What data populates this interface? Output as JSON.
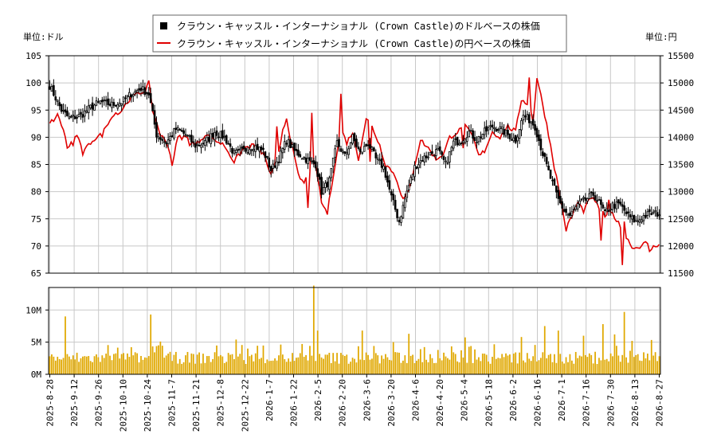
{
  "chart_data": {
    "type": "candlestick_volume",
    "legend": [
      {
        "name": "クラウン・キャッスル・インターナショナル (Crown Castle)のドルベースの株価",
        "color": "#000000"
      },
      {
        "name": "クラウン・キャッスル・インターナショナル (Crown Castle)の円ベースの株価",
        "color": "#e00000"
      }
    ],
    "left_axis_label": "単位:ドル",
    "right_axis_label": "単位:円",
    "y_left": {
      "min": 65,
      "max": 105,
      "ticks": [
        "65",
        "70",
        "75",
        "80",
        "85",
        "90",
        "95",
        "100",
        "105"
      ]
    },
    "y_right": {
      "min": 11500,
      "max": 15500,
      "ticks": [
        "11500",
        "12000",
        "12500",
        "13000",
        "13500",
        "14000",
        "14500",
        "15000",
        "15500"
      ]
    },
    "volume_axis": {
      "min": 0,
      "max": 13500000,
      "ticks": [
        {
          "v": 0,
          "label": "0M"
        },
        {
          "v": 5000000,
          "label": "5M"
        },
        {
          "v": 10000000,
          "label": "10M"
        }
      ]
    },
    "x_tick_labels": [
      "2025-8-28",
      "2025-9-12",
      "2025-9-26",
      "2025-10-10",
      "2025-10-24",
      "2025-11-7",
      "2025-11-21",
      "2025-12-8",
      "2025-12-22",
      "2026-1-7",
      "2026-1-22",
      "2026-2-5",
      "2026-2-20",
      "2026-3-6",
      "2026-3-20",
      "2026-4-6",
      "2026-4-20",
      "2026-5-4",
      "2026-5-18",
      "2026-6-2",
      "2026-6-16",
      "2026-7-1",
      "2026-7-16",
      "2026-7-30",
      "2026-8-13",
      "2026-8-27"
    ],
    "usd_close_anchors": [
      [
        0,
        99.5
      ],
      [
        6,
        95
      ],
      [
        10,
        93.5
      ],
      [
        16,
        94
      ],
      [
        21,
        95.5
      ],
      [
        26,
        96.5
      ],
      [
        32,
        96
      ],
      [
        37,
        96.5
      ],
      [
        42,
        98
      ],
      [
        47,
        99
      ],
      [
        51,
        98
      ],
      [
        55,
        90.5
      ],
      [
        60,
        89
      ],
      [
        65,
        91.5
      ],
      [
        70,
        90.5
      ],
      [
        75,
        88.5
      ],
      [
        80,
        89
      ],
      [
        85,
        91
      ],
      [
        90,
        90
      ],
      [
        95,
        87
      ],
      [
        100,
        87.5
      ],
      [
        105,
        88.5
      ],
      [
        110,
        87.5
      ],
      [
        114,
        84
      ],
      [
        118,
        86
      ],
      [
        122,
        89.5
      ],
      [
        126,
        87.5
      ],
      [
        130,
        86.5
      ],
      [
        134,
        85.5
      ],
      [
        137,
        85
      ],
      [
        140,
        80
      ],
      [
        144,
        82
      ],
      [
        148,
        89
      ],
      [
        152,
        86.5
      ],
      [
        156,
        90
      ],
      [
        160,
        87
      ],
      [
        164,
        89
      ],
      [
        168,
        86
      ],
      [
        172,
        84.5
      ],
      [
        176,
        79
      ],
      [
        180,
        74.5
      ],
      [
        184,
        80
      ],
      [
        188,
        84.5
      ],
      [
        192,
        86
      ],
      [
        196,
        87
      ],
      [
        200,
        87.5
      ],
      [
        204,
        85
      ],
      [
        208,
        89
      ],
      [
        212,
        89.5
      ],
      [
        216,
        91
      ],
      [
        220,
        89.5
      ],
      [
        224,
        91
      ],
      [
        228,
        92
      ],
      [
        232,
        91.5
      ],
      [
        236,
        90.5
      ],
      [
        240,
        89.5
      ],
      [
        244,
        94
      ],
      [
        248,
        93
      ],
      [
        250,
        92
      ],
      [
        254,
        87
      ],
      [
        258,
        82.5
      ],
      [
        262,
        78.5
      ],
      [
        265,
        76.5
      ],
      [
        268,
        75.5
      ],
      [
        272,
        77.5
      ],
      [
        276,
        78.5
      ],
      [
        280,
        79.5
      ],
      [
        283,
        78
      ],
      [
        286,
        76
      ],
      [
        290,
        77.5
      ],
      [
        294,
        77.5
      ],
      [
        298,
        75.5
      ],
      [
        302,
        74.5
      ],
      [
        306,
        75.5
      ],
      [
        310,
        76
      ],
      [
        314,
        76
      ]
    ],
    "jpy_anchors": [
      [
        0,
        14250
      ],
      [
        4,
        14400
      ],
      [
        7,
        14150
      ],
      [
        9,
        13800
      ],
      [
        14,
        14050
      ],
      [
        17,
        13700
      ],
      [
        22,
        13950
      ],
      [
        27,
        14050
      ],
      [
        31,
        14350
      ],
      [
        36,
        14450
      ],
      [
        41,
        14700
      ],
      [
        45,
        14800
      ],
      [
        49,
        14850
      ],
      [
        51,
        15000
      ],
      [
        53,
        14500
      ],
      [
        57,
        14050
      ],
      [
        61,
        13850
      ],
      [
        63,
        13500
      ],
      [
        66,
        14000
      ],
      [
        70,
        14000
      ],
      [
        75,
        13850
      ],
      [
        80,
        14050
      ],
      [
        85,
        13950
      ],
      [
        90,
        13850
      ],
      [
        95,
        13550
      ],
      [
        100,
        13800
      ],
      [
        105,
        13850
      ],
      [
        110,
        13700
      ],
      [
        114,
        13300
      ],
      [
        118,
        13700
      ],
      [
        120,
        14150
      ],
      [
        122,
        14350
      ],
      [
        125,
        13800
      ],
      [
        128,
        13300
      ],
      [
        131,
        13150
      ],
      [
        134,
        13400
      ],
      [
        137,
        13500
      ],
      [
        140,
        12800
      ],
      [
        143,
        12600
      ],
      [
        146,
        13300
      ],
      [
        150,
        14150
      ],
      [
        153,
        13900
      ],
      [
        156,
        14100
      ],
      [
        159,
        13600
      ],
      [
        163,
        14350
      ],
      [
        166,
        14200
      ],
      [
        170,
        13850
      ],
      [
        173,
        13500
      ],
      [
        176,
        13400
      ],
      [
        179,
        13200
      ],
      [
        182,
        12850
      ],
      [
        185,
        13000
      ],
      [
        188,
        13500
      ],
      [
        191,
        13950
      ],
      [
        195,
        13800
      ],
      [
        199,
        13600
      ],
      [
        203,
        13700
      ],
      [
        206,
        14000
      ],
      [
        210,
        14100
      ],
      [
        214,
        14200
      ],
      [
        218,
        14000
      ],
      [
        221,
        13650
      ],
      [
        224,
        13750
      ],
      [
        228,
        14100
      ],
      [
        232,
        14000
      ],
      [
        236,
        14200
      ],
      [
        240,
        14100
      ],
      [
        243,
        14700
      ],
      [
        247,
        14600
      ],
      [
        249,
        14300
      ],
      [
        251,
        15100
      ],
      [
        254,
        14600
      ],
      [
        257,
        14050
      ],
      [
        260,
        13450
      ],
      [
        263,
        12900
      ],
      [
        266,
        12300
      ],
      [
        269,
        12550
      ],
      [
        272,
        12800
      ],
      [
        275,
        12650
      ],
      [
        279,
        12900
      ],
      [
        283,
        12700
      ],
      [
        286,
        12550
      ],
      [
        290,
        12600
      ],
      [
        294,
        12350
      ],
      [
        298,
        12100
      ],
      [
        301,
        11950
      ],
      [
        304,
        12000
      ],
      [
        307,
        12050
      ],
      [
        310,
        11950
      ],
      [
        314,
        12050
      ]
    ],
    "jpy_dips": [
      [
        12,
        13.85
      ],
      [
        72,
        13.85
      ],
      [
        133,
        12.7
      ],
      [
        165,
        13.55
      ],
      [
        213,
        13.8
      ],
      [
        284,
        12.1
      ],
      [
        295,
        11.65
      ],
      [
        296,
        12.45
      ],
      [
        309,
        11.9
      ]
    ],
    "jpy_peaks": [
      [
        34,
        14.45
      ],
      [
        117,
        14.2
      ],
      [
        135,
        14.45
      ],
      [
        150,
        14.8
      ],
      [
        247,
        15.1
      ],
      [
        288,
        12.85
      ]
    ],
    "volume_spikes": [
      [
        8,
        9.0
      ],
      [
        52,
        9.3
      ],
      [
        136,
        13.8
      ],
      [
        138,
        6.8
      ],
      [
        161,
        6.8
      ],
      [
        177,
        5.0
      ],
      [
        185,
        6.3
      ],
      [
        243,
        5.8
      ],
      [
        255,
        7.5
      ],
      [
        262,
        6.8
      ],
      [
        275,
        6.0
      ],
      [
        285,
        7.8
      ],
      [
        291,
        6.2
      ],
      [
        296,
        9.7
      ],
      [
        300,
        5.2
      ]
    ],
    "n_days": 315
  }
}
